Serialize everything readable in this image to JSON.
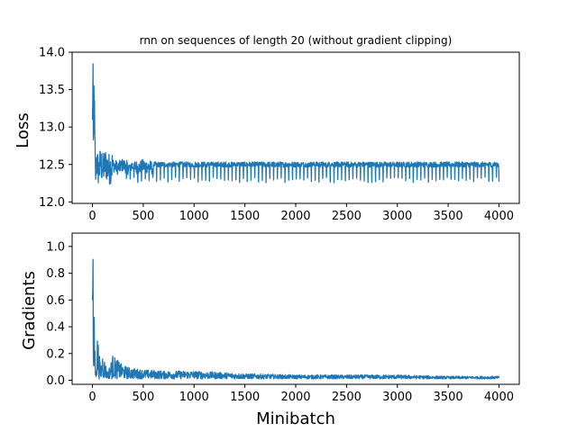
{
  "chart_data": [
    {
      "type": "line",
      "title": "rnn on sequences of length 20 (without gradient clipping)",
      "xlabel": "",
      "ylabel": "Loss",
      "xlim": [
        -200,
        4200
      ],
      "ylim": [
        11.98,
        14.0
      ],
      "x_ticks": [
        0,
        500,
        1000,
        1500,
        2000,
        2500,
        3000,
        3500,
        4000
      ],
      "y_ticks": [
        12.0,
        12.5,
        13.0,
        13.5,
        14.0
      ],
      "x_tick_labels": [
        "0",
        "500",
        "1000",
        "1500",
        "2000",
        "2500",
        "3000",
        "3500",
        "4000"
      ],
      "y_tick_labels": [
        "12.0",
        "12.5",
        "13.0",
        "13.5",
        "14.0"
      ],
      "grid": false,
      "color": "#1f77b4",
      "series": [
        {
          "x": [
            0,
            5,
            10,
            15,
            20,
            30,
            40,
            60,
            80,
            100,
            130,
            160,
            200,
            250,
            300,
            350,
            400,
            450,
            500,
            600,
            700,
            800,
            900,
            1000,
            1200,
            1400,
            1600,
            1800,
            2000,
            2500,
            3000,
            3500,
            4000
          ],
          "values": [
            13.1,
            13.9,
            12.4,
            13.5,
            12.9,
            12.1,
            12.8,
            12.3,
            12.7,
            12.4,
            12.65,
            12.4,
            12.6,
            12.45,
            12.6,
            12.45,
            12.58,
            12.45,
            12.55,
            12.47,
            12.55,
            12.48,
            12.54,
            12.48,
            12.53,
            12.48,
            12.52,
            12.48,
            12.52,
            12.49,
            12.51,
            12.49,
            12.27
          ]
        }
      ]
    },
    {
      "type": "line",
      "title": "",
      "xlabel": "Minibatch",
      "ylabel": "Gradients",
      "xlim": [
        -200,
        4200
      ],
      "ylim": [
        -0.03,
        1.1
      ],
      "x_ticks": [
        0,
        500,
        1000,
        1500,
        2000,
        2500,
        3000,
        3500,
        4000
      ],
      "y_ticks": [
        0.0,
        0.2,
        0.4,
        0.6,
        0.8,
        1.0
      ],
      "x_tick_labels": [
        "0",
        "500",
        "1000",
        "1500",
        "2000",
        "2500",
        "3000",
        "3500",
        "4000"
      ],
      "y_tick_labels": [
        "0.0",
        "0.2",
        "0.4",
        "0.6",
        "0.8",
        "1.0"
      ],
      "grid": false,
      "color": "#1f77b4",
      "series": [
        {
          "x": [
            0,
            5,
            10,
            20,
            30,
            50,
            80,
            100,
            150,
            200,
            300,
            400,
            500,
            700,
            1000,
            1500,
            2000,
            2500,
            3000,
            3500,
            4000
          ],
          "values": [
            0.6,
            1.05,
            0.02,
            0.65,
            0.05,
            0.35,
            0.08,
            0.2,
            0.05,
            0.18,
            0.1,
            0.08,
            0.07,
            0.06,
            0.06,
            0.04,
            0.03,
            0.03,
            0.03,
            0.02,
            0.02
          ]
        }
      ]
    }
  ]
}
